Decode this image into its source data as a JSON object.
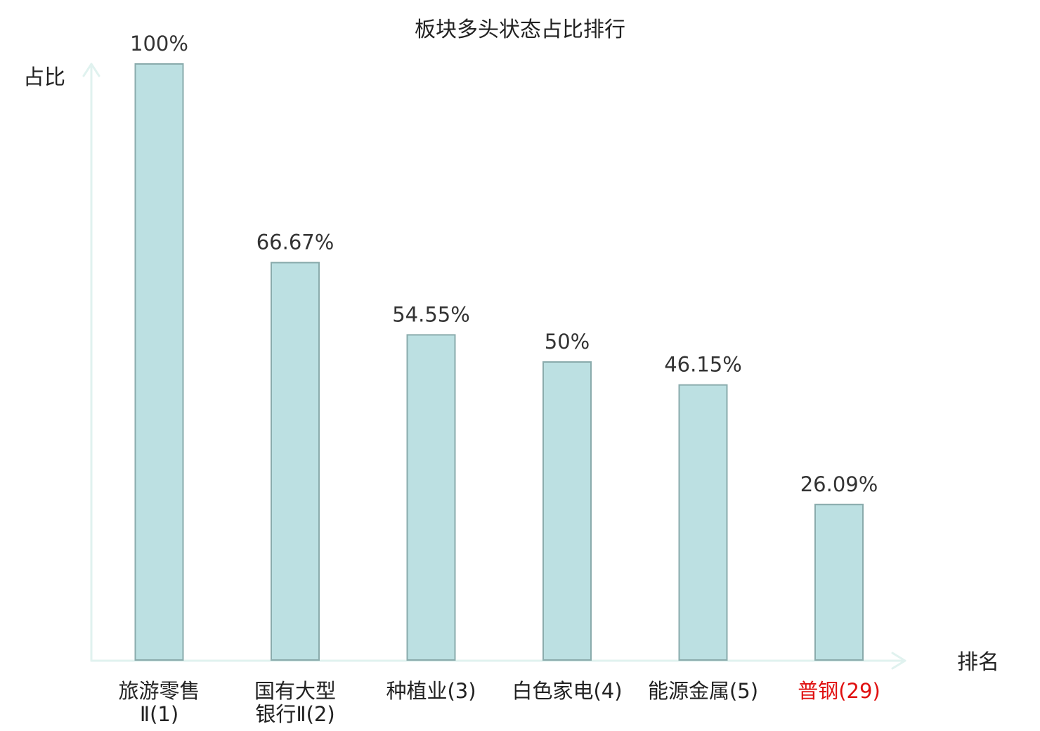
{
  "chart_data": {
    "type": "bar",
    "title": "板块多头状态占比排行",
    "xlabel": "排名",
    "ylabel": "占比",
    "ylim": [
      0,
      100
    ],
    "grid": false,
    "value_format": "percent",
    "categories": [
      {
        "lines": [
          "旅游零售",
          "Ⅱ(1)"
        ],
        "highlight": false
      },
      {
        "lines": [
          "国有大型",
          "银行Ⅱ(2)"
        ],
        "highlight": false
      },
      {
        "lines": [
          "种植业(3)"
        ],
        "highlight": false
      },
      {
        "lines": [
          "白色家电(4)"
        ],
        "highlight": false
      },
      {
        "lines": [
          "能源金属(5)"
        ],
        "highlight": false
      },
      {
        "lines": [
          "普钢(29)"
        ],
        "highlight": true
      }
    ],
    "values": [
      100,
      66.67,
      54.55,
      50,
      46.15,
      26.09
    ],
    "labels": [
      "100%",
      "66.67%",
      "54.55%",
      "50%",
      "46.15%",
      "26.09%"
    ]
  },
  "colors": {
    "bar_fill": "#bce0e2",
    "bar_stroke": "#8aabac",
    "axis": "#e0f2ef",
    "label_text": "#222222",
    "highlight_text": "#e01010"
  }
}
